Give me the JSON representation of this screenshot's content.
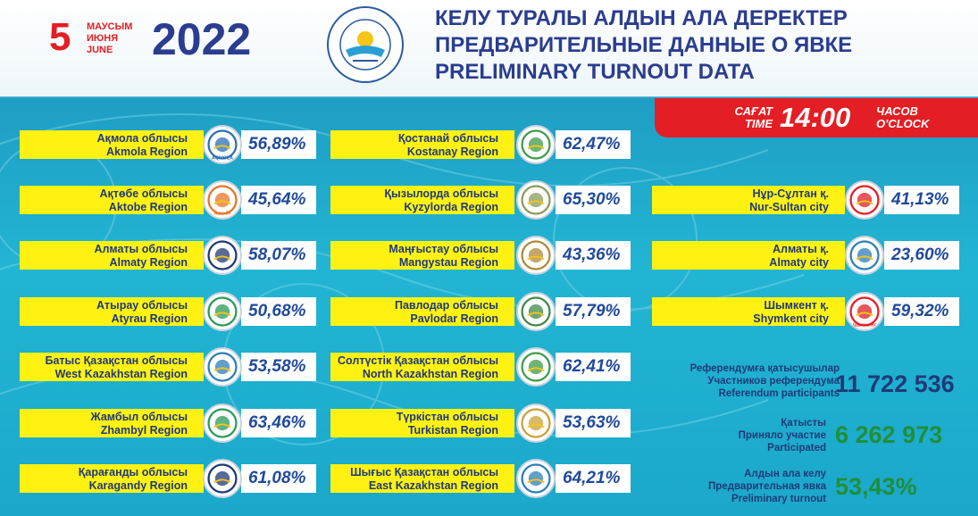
{
  "header": {
    "day": "5",
    "month_kz": "МАУСЫМ",
    "month_ru": "ИЮНЯ",
    "month_en": "JUNE",
    "year": "2022",
    "title_kz": "КЕЛУ ТУРАЛЫ АЛДЫН АЛА ДЕРЕКТЕР",
    "title_ru": "ПРЕДВАРИТЕЛЬНЫЕ ДАННЫЕ О ЯВКЕ",
    "title_en": "PRELIMINARY TURNOUT DATA",
    "seal_text": "ҚАЗАҚСТАН РЕСПУБЛИКАСЫНЫҢ ОРТАЛЫҚ РЕФЕРЕНДУМ КОМИССИЯСЫ"
  },
  "time": {
    "label_kz": "САҒАТ",
    "label_en": "TIME",
    "clock": "14:00",
    "label_ru": "ЧАСОВ",
    "label_en2": "O'CLOCK"
  },
  "regions_col1": [
    {
      "name_kz": "Ақмола облысы",
      "name_en": "Akmola Region",
      "value": "56,89%",
      "emblem": "aqmola-logo",
      "logo_text": "AQMOLA",
      "color": "#2b6fb6"
    },
    {
      "name_kz": "Ақтөбе облысы",
      "name_en": "Aktobe Region",
      "value": "45,64%",
      "emblem": "aktobe-logo",
      "logo_text": "Ақтөбе",
      "color": "#e8742a"
    },
    {
      "name_kz": "Алматы облысы",
      "name_en": "Almaty Region",
      "value": "58,07%",
      "emblem": "almaty-region-emblem",
      "color": "#1f3a78"
    },
    {
      "name_kz": "Атырау облысы",
      "name_en": "Atyrau Region",
      "value": "50,68%",
      "emblem": "atyrau-emblem",
      "color": "#2a9b5a"
    },
    {
      "name_kz": "Батыс Қазақстан облысы",
      "name_en": "West Kazakhstan Region",
      "value": "53,58%",
      "emblem": "west-kazakhstan-emblem",
      "color": "#2d7fb8"
    },
    {
      "name_kz": "Жамбыл облысы",
      "name_en": "Zhambyl Region",
      "value": "63,46%",
      "emblem": "zhambyl-emblem",
      "color": "#2a9b5a"
    },
    {
      "name_kz": "Қарағанды облысы",
      "name_en": "Karagandy Region",
      "value": "61,08%",
      "emblem": "karagandy-emblem",
      "color": "#1f3a78"
    }
  ],
  "regions_col2": [
    {
      "name_kz": "Қостанай облысы",
      "name_en": "Kostanay Region",
      "value": "62,47%",
      "emblem": "kostanay-emblem",
      "color": "#3f9b4a"
    },
    {
      "name_kz": "Қызылорда облысы",
      "name_en": "Kyzylorda Region",
      "value": "65,30%",
      "emblem": "kyzylorda-emblem",
      "color": "#8a9c5a"
    },
    {
      "name_kz": "Маңғыстау облысы",
      "name_en": "Mangystau Region",
      "value": "43,36%",
      "emblem": "mangystau-emblem",
      "color": "#b08a3a"
    },
    {
      "name_kz": "Павлодар облысы",
      "name_en": "Pavlodar Region",
      "value": "57,79%",
      "emblem": "pavlodar-emblem",
      "color": "#3f8a4a"
    },
    {
      "name_kz": "Солтүстік Қазақстан облысы",
      "name_en": "North Kazakhstan Region",
      "value": "62,41%",
      "emblem": "north-kazakhstan-emblem",
      "color": "#3f9b4a"
    },
    {
      "name_kz": "Түркістан облысы",
      "name_en": "Turkistan Region",
      "value": "53,63%",
      "emblem": "turkistan-emblem",
      "color": "#c8a23a"
    },
    {
      "name_kz": "Шығыс Қазақстан облысы",
      "name_en": "East Kazakhstan Region",
      "value": "64,21%",
      "emblem": "east-kazakhstan-emblem",
      "color": "#2d7fb8"
    }
  ],
  "cities": [
    {
      "name_kz": "Нұр-Сұлтан қ.",
      "name_en": "Nur-Sultan city",
      "value": "41,13%",
      "emblem": "nur-sultan-emblem",
      "color": "#e31e24"
    },
    {
      "name_kz": "Алматы қ.",
      "name_en": "Almaty city",
      "value": "23,60%",
      "emblem": "almaty-city-emblem",
      "color": "#2d7fb8"
    },
    {
      "name_kz": "Шымкент қ.",
      "name_en": "Shymkent city",
      "value": "59,32%",
      "emblem": "shymkent-logo",
      "logo_text": "Шымкент",
      "color": "#e31e24"
    }
  ],
  "summary": {
    "participants": {
      "kz": "Референдумға қатысушылар",
      "ru": "Участников референдума",
      "en": "Referendum participants",
      "value": "11 722 536",
      "color": "#1f3a78"
    },
    "participated": {
      "kz": "Қатысты",
      "ru": "Приняло участие",
      "en": "Participated",
      "value": "6 262 973",
      "color": "#1f8f3a"
    },
    "turnout": {
      "kz": "Алдын ала келу",
      "ru": "Предварительная явка",
      "en": "Preliminary turnout",
      "value": "53,43%",
      "color": "#1f8f3a"
    }
  }
}
